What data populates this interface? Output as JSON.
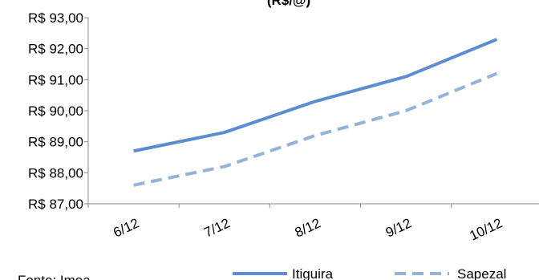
{
  "chart_data": {
    "type": "line",
    "title": "(R$/@)",
    "categories": [
      "6/12",
      "7/12",
      "8/12",
      "9/12",
      "10/12"
    ],
    "series": [
      {
        "name": "Itiguira",
        "values": [
          88.7,
          89.3,
          90.3,
          91.1,
          92.3
        ],
        "color": "#5B8DD0",
        "style": "solid"
      },
      {
        "name": "Sapezal",
        "values": [
          87.6,
          88.2,
          89.2,
          90.0,
          91.2
        ],
        "color": "#95B3D7",
        "style": "dashed"
      }
    ],
    "ylim": [
      87,
      93
    ],
    "yticks": [
      "R$ 87,00",
      "R$ 88,00",
      "R$ 89,00",
      "R$ 90,00",
      "R$ 91,00",
      "R$ 92,00",
      "R$ 93,00"
    ],
    "grid": false,
    "legend_position": "bottom-right"
  },
  "footer": {
    "source": "Fonte: Imea"
  }
}
